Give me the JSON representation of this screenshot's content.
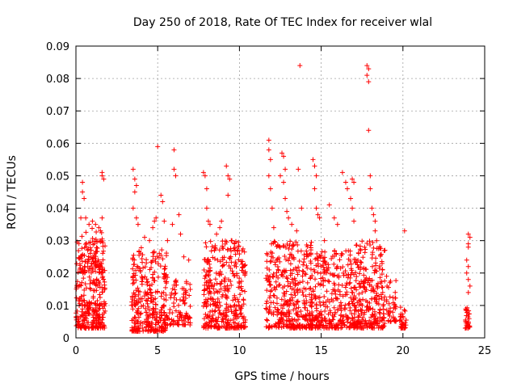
{
  "chart_data": {
    "type": "scatter",
    "title": "Day 250 of 2018, Rate Of TEC Index for receiver wlal",
    "xlabel": "GPS time / hours",
    "ylabel": "ROTI / TECUs",
    "xlim": [
      0,
      25
    ],
    "ylim": [
      0,
      0.09
    ],
    "xticks": [
      "0",
      "5",
      "10",
      "15",
      "20",
      "25"
    ],
    "yticks": [
      "0",
      "0.01",
      "0.02",
      "0.03",
      "0.04",
      "0.05",
      "0.06",
      "0.07",
      "0.08",
      "0.09"
    ],
    "grid": true,
    "marker": "+",
    "color": "#ff0000",
    "clusters": [
      {
        "x": [
          0.0,
          1.8
        ],
        "y": [
          0.003,
          0.03
        ],
        "n": 320
      },
      {
        "x": [
          0.2,
          1.7
        ],
        "y": [
          0.02,
          0.037
        ],
        "n": 40
      },
      {
        "x": [
          3.4,
          5.6
        ],
        "y": [
          0.002,
          0.028
        ],
        "n": 320
      },
      {
        "x": [
          5.6,
          7.0
        ],
        "y": [
          0.004,
          0.02
        ],
        "n": 90
      },
      {
        "x": [
          7.8,
          10.4
        ],
        "y": [
          0.003,
          0.03
        ],
        "n": 360
      },
      {
        "x": [
          11.6,
          14.5
        ],
        "y": [
          0.003,
          0.03
        ],
        "n": 380
      },
      {
        "x": [
          14.5,
          17.0
        ],
        "y": [
          0.003,
          0.027
        ],
        "n": 300
      },
      {
        "x": [
          17.0,
          18.9
        ],
        "y": [
          0.003,
          0.03
        ],
        "n": 280
      },
      {
        "x": [
          19.0,
          19.6
        ],
        "y": [
          0.005,
          0.018
        ],
        "n": 40
      },
      {
        "x": [
          19.8,
          20.2
        ],
        "y": [
          0.003,
          0.011
        ],
        "n": 30
      },
      {
        "x": [
          23.8,
          24.1
        ],
        "y": [
          0.003,
          0.01
        ],
        "n": 30
      }
    ],
    "points": [
      [
        0.3,
        0.037
      ],
      [
        0.4,
        0.048
      ],
      [
        0.4,
        0.045
      ],
      [
        0.5,
        0.043
      ],
      [
        0.6,
        0.037
      ],
      [
        0.8,
        0.035
      ],
      [
        1.2,
        0.035
      ],
      [
        1.4,
        0.034
      ],
      [
        1.5,
        0.033
      ],
      [
        1.6,
        0.037
      ],
      [
        1.6,
        0.05
      ],
      [
        1.7,
        0.049
      ],
      [
        1.6,
        0.051
      ],
      [
        3.5,
        0.052
      ],
      [
        3.6,
        0.049
      ],
      [
        3.7,
        0.047
      ],
      [
        3.6,
        0.045
      ],
      [
        3.5,
        0.04
      ],
      [
        3.7,
        0.037
      ],
      [
        3.8,
        0.035
      ],
      [
        4.2,
        0.031
      ],
      [
        4.5,
        0.03
      ],
      [
        4.7,
        0.034
      ],
      [
        4.8,
        0.036
      ],
      [
        4.9,
        0.037
      ],
      [
        5.0,
        0.059
      ],
      [
        5.2,
        0.044
      ],
      [
        5.3,
        0.042
      ],
      [
        5.4,
        0.036
      ],
      [
        5.6,
        0.03
      ],
      [
        5.9,
        0.035
      ],
      [
        6.0,
        0.058
      ],
      [
        6.0,
        0.052
      ],
      [
        6.1,
        0.05
      ],
      [
        6.3,
        0.038
      ],
      [
        6.4,
        0.032
      ],
      [
        6.6,
        0.025
      ],
      [
        6.9,
        0.024
      ],
      [
        7.8,
        0.051
      ],
      [
        7.9,
        0.05
      ],
      [
        8.0,
        0.046
      ],
      [
        8.0,
        0.04
      ],
      [
        8.1,
        0.036
      ],
      [
        8.2,
        0.035
      ],
      [
        8.6,
        0.032
      ],
      [
        8.8,
        0.034
      ],
      [
        8.9,
        0.036
      ],
      [
        9.2,
        0.053
      ],
      [
        9.3,
        0.05
      ],
      [
        9.4,
        0.049
      ],
      [
        9.3,
        0.044
      ],
      [
        9.5,
        0.03
      ],
      [
        9.7,
        0.029
      ],
      [
        9.9,
        0.027
      ],
      [
        11.8,
        0.061
      ],
      [
        11.8,
        0.058
      ],
      [
        11.9,
        0.055
      ],
      [
        11.8,
        0.05
      ],
      [
        11.9,
        0.046
      ],
      [
        12.0,
        0.04
      ],
      [
        12.1,
        0.034
      ],
      [
        12.5,
        0.05
      ],
      [
        12.6,
        0.057
      ],
      [
        12.7,
        0.056
      ],
      [
        12.8,
        0.052
      ],
      [
        12.7,
        0.048
      ],
      [
        12.8,
        0.043
      ],
      [
        12.9,
        0.039
      ],
      [
        13.0,
        0.037
      ],
      [
        13.2,
        0.035
      ],
      [
        13.5,
        0.033
      ],
      [
        13.6,
        0.052
      ],
      [
        13.7,
        0.084
      ],
      [
        13.8,
        0.04
      ],
      [
        14.5,
        0.055
      ],
      [
        14.6,
        0.053
      ],
      [
        14.7,
        0.05
      ],
      [
        14.6,
        0.046
      ],
      [
        14.7,
        0.04
      ],
      [
        14.8,
        0.038
      ],
      [
        14.9,
        0.037
      ],
      [
        15.2,
        0.03
      ],
      [
        15.5,
        0.041
      ],
      [
        15.8,
        0.037
      ],
      [
        16.0,
        0.035
      ],
      [
        16.3,
        0.051
      ],
      [
        16.5,
        0.048
      ],
      [
        16.6,
        0.046
      ],
      [
        16.9,
        0.049
      ],
      [
        17.0,
        0.048
      ],
      [
        16.8,
        0.043
      ],
      [
        16.9,
        0.04
      ],
      [
        17.0,
        0.036
      ],
      [
        17.8,
        0.084
      ],
      [
        17.9,
        0.083
      ],
      [
        17.8,
        0.081
      ],
      [
        17.9,
        0.079
      ],
      [
        17.9,
        0.064
      ],
      [
        18.0,
        0.05
      ],
      [
        18.0,
        0.046
      ],
      [
        18.1,
        0.04
      ],
      [
        18.2,
        0.038
      ],
      [
        18.3,
        0.036
      ],
      [
        18.3,
        0.033
      ],
      [
        20.1,
        0.033
      ],
      [
        19.0,
        0.019
      ],
      [
        19.2,
        0.017
      ],
      [
        24.0,
        0.032
      ],
      [
        24.1,
        0.031
      ],
      [
        24.0,
        0.029
      ],
      [
        24.0,
        0.028
      ],
      [
        23.9,
        0.024
      ],
      [
        24.0,
        0.022
      ],
      [
        23.9,
        0.02
      ],
      [
        24.0,
        0.018
      ],
      [
        24.1,
        0.016
      ],
      [
        24.0,
        0.014
      ]
    ]
  }
}
